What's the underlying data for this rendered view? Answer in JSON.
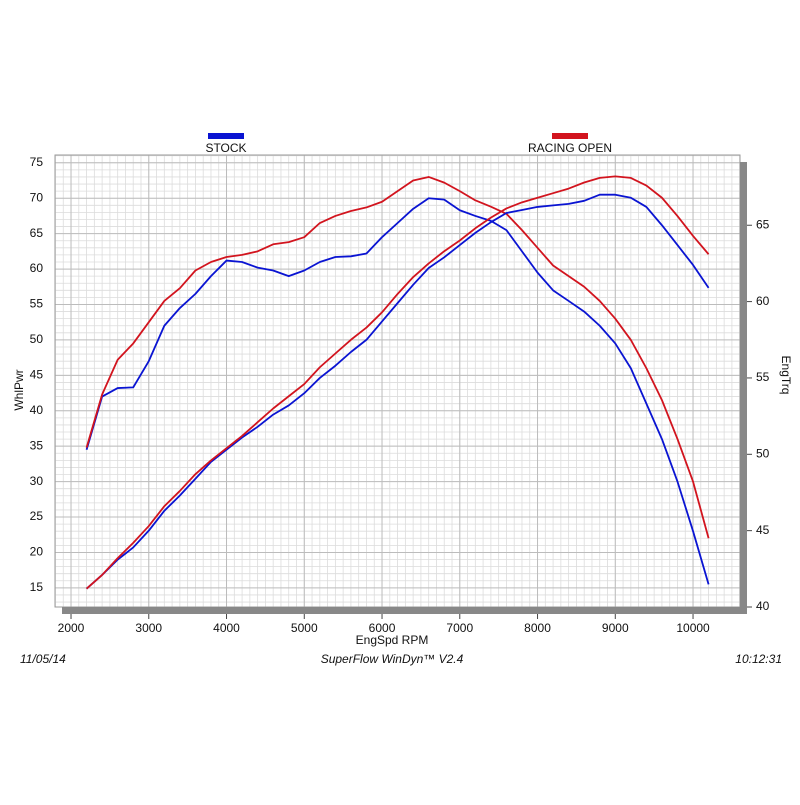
{
  "chart_data": {
    "type": "line",
    "legend": [
      {
        "name": "STOCK",
        "color": "#0a14d2"
      },
      {
        "name": "RACING OPEN",
        "color": "#d2141e"
      }
    ],
    "x_label": "EngSpd  RPM",
    "y_label": "WhlPwr",
    "y2_label": "EngTrq",
    "footer": {
      "date": "11/05/14",
      "software": "SuperFlow WinDyn™  V2.4",
      "time": "10:12:31"
    },
    "x": [
      2200,
      2400,
      2600,
      2800,
      3000,
      3200,
      3400,
      3600,
      3800,
      4000,
      4200,
      4400,
      4600,
      4800,
      5000,
      5200,
      5400,
      5600,
      5800,
      6000,
      6200,
      6400,
      6600,
      6800,
      7000,
      7200,
      7400,
      7600,
      7800,
      8000,
      8200,
      8400,
      8600,
      8800,
      9000,
      9200,
      9400,
      9600,
      9800,
      10000,
      10200
    ],
    "series": [
      {
        "color": "#0a14d2",
        "values": [
          34.5,
          42,
          43.2,
          43.3,
          47,
          52,
          54.5,
          56.5,
          59,
          61.2,
          61,
          60.2,
          59.8,
          59,
          59.8,
          61,
          61.7,
          61.8,
          62.2,
          64.5,
          66.5,
          68.5,
          70,
          69.8,
          68.3,
          67.5,
          66.8,
          65.5,
          62.5,
          59.5,
          57,
          55.5,
          54,
          52,
          49.5,
          46,
          41,
          36,
          30,
          23,
          15.5
        ]
      },
      {
        "color": "#d2141e",
        "values": [
          34.8,
          42.3,
          47.2,
          49.5,
          52.5,
          55.5,
          57.3,
          59.8,
          61,
          61.7,
          62,
          62.5,
          63.5,
          63.8,
          64.5,
          66.5,
          67.5,
          68.2,
          68.7,
          69.5,
          71,
          72.5,
          73,
          72.2,
          71,
          69.7,
          68.8,
          67.8,
          65.5,
          63,
          60.5,
          59,
          57.5,
          55.5,
          53,
          50,
          46,
          41.5,
          36,
          30,
          22
        ]
      },
      {
        "color": "#0a14d2",
        "axis": "y2",
        "values": [
          41.2,
          42.1,
          43.1,
          43.9,
          45.0,
          46.3,
          47.3,
          48.4,
          49.5,
          50.3,
          51.1,
          51.8,
          52.6,
          53.2,
          54.0,
          55.0,
          55.8,
          56.7,
          57.5,
          58.7,
          59.9,
          61.1,
          62.2,
          62.9,
          63.7,
          64.5,
          65.2,
          65.8,
          66.0,
          66.2,
          66.3,
          66.4,
          66.6,
          67.0,
          67.0,
          66.8,
          66.2,
          65.0,
          63.7,
          62.4,
          60.9
        ]
      },
      {
        "color": "#d2141e",
        "axis": "y2",
        "values": [
          41.2,
          42.1,
          43.2,
          44.2,
          45.3,
          46.6,
          47.6,
          48.7,
          49.6,
          50.4,
          51.2,
          52.1,
          53.0,
          53.8,
          54.6,
          55.7,
          56.6,
          57.5,
          58.3,
          59.3,
          60.5,
          61.6,
          62.5,
          63.3,
          64.0,
          64.8,
          65.5,
          66.1,
          66.5,
          66.8,
          67.1,
          67.4,
          67.8,
          68.1,
          68.2,
          68.1,
          67.6,
          66.8,
          65.6,
          64.3,
          63.1
        ]
      }
    ],
    "xlim": [
      1794,
      10604
    ],
    "xticks": [
      2000,
      3000,
      4000,
      5000,
      6000,
      7000,
      8000,
      9000,
      10000
    ],
    "ylim": [
      12.3,
      76.1
    ],
    "yticks": [
      15,
      20,
      25,
      30,
      35,
      40,
      45,
      50,
      55,
      60,
      65,
      70,
      75
    ],
    "y2lim": [
      40,
      69.6
    ],
    "y2ticks": [
      40,
      45,
      50,
      55,
      60,
      65
    ],
    "grid": true
  }
}
